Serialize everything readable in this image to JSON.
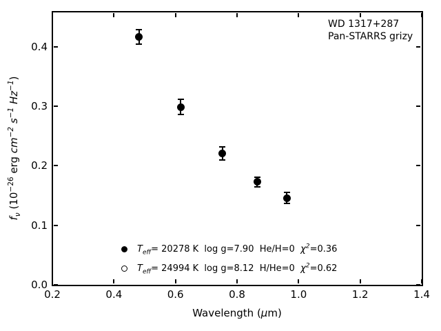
{
  "figure": {
    "background_color": "#ffffff",
    "foreground_color": "#000000"
  },
  "chart_data": {
    "type": "scatter",
    "title": "",
    "annotation": [
      "WD 1317+287",
      "Pan-STARRS grizy"
    ],
    "xlabel": "Wavelength (μm)",
    "xlabel_parts": [
      {
        "t": "Wavelength (",
        "v": ""
      },
      {
        "t": "μ",
        "v": "i"
      },
      {
        "t": "m)",
        "v": ""
      }
    ],
    "ylabel": "fν (10⁻²⁶ erg cm⁻² s⁻¹ Hz⁻¹)",
    "ylabel_parts": [
      {
        "t": "f",
        "v": "i"
      },
      {
        "t": "ν",
        "v": "subi"
      },
      {
        "t": " (10",
        "v": ""
      },
      {
        "t": "−26",
        "v": "sup"
      },
      {
        "t": " erg ",
        "v": ""
      },
      {
        "t": "cm",
        "v": "i"
      },
      {
        "t": "−2",
        "v": "supi"
      },
      {
        "t": " ",
        "v": ""
      },
      {
        "t": "s",
        "v": "i"
      },
      {
        "t": "−1",
        "v": "supi"
      },
      {
        "t": " ",
        "v": ""
      },
      {
        "t": "Hz",
        "v": "i"
      },
      {
        "t": "−1",
        "v": "supi"
      },
      {
        "t": ")",
        "v": ""
      }
    ],
    "xlim": [
      0.2,
      1.4
    ],
    "ylim": [
      0.0,
      0.459
    ],
    "xticks": {
      "values": [
        0.2,
        0.4,
        0.6,
        0.8,
        1.0,
        1.2,
        1.4
      ],
      "labels": [
        "0.2",
        "0.4",
        "0.6",
        "0.8",
        "1.0",
        "1.2",
        "1.4"
      ]
    },
    "yticks": {
      "values": [
        0.0,
        0.1,
        0.2,
        0.3,
        0.4
      ],
      "labels": [
        "0.0",
        "0.1",
        "0.2",
        "0.3",
        "0.4"
      ]
    },
    "grid": false,
    "legend_position": "lower-left-inside",
    "series": [
      {
        "name": "Pan-STARRS grizy photometry",
        "marker": "filled-circle",
        "color": "#000000",
        "points": [
          {
            "x": 0.481,
            "y": 0.417,
            "yerr": 0.012
          },
          {
            "x": 0.617,
            "y": 0.299,
            "yerr": 0.013
          },
          {
            "x": 0.752,
            "y": 0.221,
            "yerr": 0.011
          },
          {
            "x": 0.866,
            "y": 0.173,
            "yerr": 0.008
          },
          {
            "x": 0.962,
            "y": 0.146,
            "yerr": 0.009
          }
        ]
      }
    ],
    "legend": [
      {
        "marker": "filled-circle",
        "text": "Teff= 20278 K  log g=7.90  He/H=0  χ²=0.36",
        "parts": [
          {
            "t": "T",
            "v": "i"
          },
          {
            "t": "eff",
            "v": "subi"
          },
          {
            "t": "= 20278 K  log g=7.90  He/H=0  ",
            "v": ""
          },
          {
            "t": "χ",
            "v": "i"
          },
          {
            "t": "2",
            "v": "supi"
          },
          {
            "t": "=0.36",
            "v": ""
          }
        ]
      },
      {
        "marker": "open-circle",
        "text": "Teff= 24994 K  log g=8.12  H/He=0  χ²=0.62",
        "parts": [
          {
            "t": "T",
            "v": "i"
          },
          {
            "t": "eff",
            "v": "subi"
          },
          {
            "t": "= 24994 K  log g=8.12  H/He=0  ",
            "v": ""
          },
          {
            "t": "χ",
            "v": "i"
          },
          {
            "t": "2",
            "v": "supi"
          },
          {
            "t": "=0.62",
            "v": ""
          }
        ]
      }
    ]
  }
}
